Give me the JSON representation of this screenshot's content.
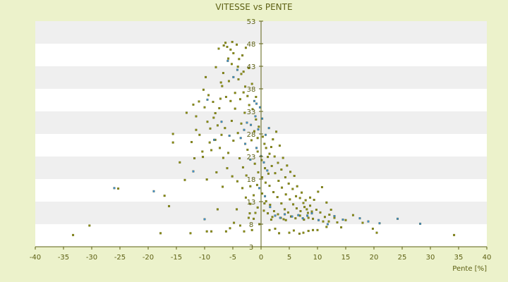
{
  "chart_data": {
    "type": "scatter",
    "title": "VITESSE vs PENTE",
    "xlabel": "Pente [%]",
    "ylabel": "",
    "xlim": [
      -40,
      40
    ],
    "ylim": [
      3,
      53
    ],
    "x_ticks": [
      -40,
      -35,
      -30,
      -25,
      -20,
      -15,
      -10,
      -5,
      0,
      5,
      10,
      15,
      20,
      25,
      30,
      35,
      40
    ],
    "y_ticks": [
      3,
      8,
      13,
      18,
      23,
      28,
      33,
      38,
      43,
      48,
      53
    ],
    "y_tick_labels": [
      "3",
      "8",
      "13",
      "18",
      "23",
      "28",
      "33",
      "38",
      "43",
      "48",
      "53"
    ],
    "grid": "horizontal bands",
    "colors": {
      "olive": "#8c8f10",
      "blue": "#3a8fd6",
      "band_light": "#ffffff",
      "band_dark": "#efefef",
      "axis": "#5d6013"
    },
    "series": [
      {
        "color": "#8c8f10",
        "points": [
          [
            -33.3,
            5.6
          ],
          [
            -30.4,
            7.7
          ],
          [
            -25.3,
            15.9
          ],
          [
            -17.8,
            6.0
          ],
          [
            -17.1,
            14.3
          ],
          [
            -16.3,
            12.0
          ],
          [
            -12.5,
            6.0
          ],
          [
            -11.8,
            22.6
          ],
          [
            -10.4,
            24.1
          ],
          [
            -9.6,
            6.4
          ],
          [
            -8.8,
            6.4
          ],
          [
            -7.7,
            11.3
          ],
          [
            -6.2,
            6.4
          ],
          [
            -5.5,
            7.1
          ],
          [
            -4.8,
            8.3
          ],
          [
            -4.3,
            11.3
          ],
          [
            -3.7,
            7.7
          ],
          [
            -3.0,
            6.4
          ],
          [
            -2.2,
            9.4
          ],
          [
            -1.6,
            6.7
          ],
          [
            -1.0,
            10.5
          ],
          [
            -0.3,
            8.0
          ],
          [
            0.5,
            11.0
          ],
          [
            1.5,
            6.7
          ],
          [
            1.8,
            9.0
          ],
          [
            2.5,
            7.0
          ],
          [
            3.2,
            6.0
          ],
          [
            4.0,
            9.1
          ],
          [
            5.0,
            6.1
          ],
          [
            5.8,
            6.6
          ],
          [
            6.8,
            5.9
          ],
          [
            7.5,
            6.1
          ],
          [
            8.4,
            6.5
          ],
          [
            9.2,
            6.7
          ],
          [
            10.0,
            6.7
          ],
          [
            11.6,
            7.4
          ],
          [
            12.0,
            8.6
          ],
          [
            14.2,
            7.3
          ],
          [
            16.3,
            10.0
          ],
          [
            19.8,
            7.0
          ],
          [
            20.5,
            6.1
          ],
          [
            34.2,
            5.6
          ],
          [
            -9.6,
            17.9
          ],
          [
            -6.8,
            16.3
          ],
          [
            -13.5,
            17.8
          ],
          [
            -14.4,
            21.7
          ],
          [
            -15.6,
            26.1
          ],
          [
            -15.6,
            28.0
          ],
          [
            -13.2,
            32.7
          ],
          [
            -11.5,
            31.9
          ],
          [
            -10.0,
            33.9
          ],
          [
            -9.8,
            40.6
          ],
          [
            -7.1,
            39.4
          ],
          [
            -8.0,
            42.8
          ],
          [
            -6.6,
            47.6
          ],
          [
            -6.0,
            47.3
          ],
          [
            -5.4,
            46.7
          ],
          [
            -4.9,
            45.9
          ],
          [
            -5.2,
            43.5
          ],
          [
            -3.9,
            44.6
          ],
          [
            -3.5,
            41.3
          ],
          [
            -2.8,
            38.5
          ],
          [
            -4.6,
            37.1
          ],
          [
            -6.2,
            36.2
          ],
          [
            -7.4,
            33.7
          ],
          [
            -8.4,
            31.6
          ],
          [
            -9.0,
            29.2
          ],
          [
            -8.1,
            26.7
          ],
          [
            -7.3,
            24.9
          ],
          [
            -6.7,
            22.7
          ],
          [
            -5.8,
            23.8
          ],
          [
            -4.9,
            26.5
          ],
          [
            -4.1,
            28.2
          ],
          [
            -3.5,
            30.3
          ],
          [
            -2.9,
            32.7
          ],
          [
            -2.1,
            34.4
          ],
          [
            -1.5,
            33.5
          ],
          [
            -0.9,
            31.2
          ],
          [
            -0.4,
            29.6
          ],
          [
            0.3,
            27.4
          ],
          [
            0.9,
            24.9
          ],
          [
            1.5,
            23.6
          ],
          [
            2.1,
            26.8
          ],
          [
            2.7,
            28.5
          ],
          [
            3.3,
            25.4
          ],
          [
            3.9,
            22.7
          ],
          [
            4.6,
            21.0
          ],
          [
            5.2,
            19.6
          ],
          [
            5.9,
            18.7
          ],
          [
            6.4,
            16.4
          ],
          [
            7.2,
            15.0
          ],
          [
            7.9,
            13.3
          ],
          [
            8.7,
            12.1
          ],
          [
            9.4,
            13.4
          ],
          [
            10.1,
            15.2
          ],
          [
            10.8,
            16.2
          ],
          [
            11.6,
            12.8
          ],
          [
            12.4,
            11.2
          ],
          [
            -1.1,
            21.4
          ],
          [
            -0.5,
            19.5
          ],
          [
            0.2,
            18.4
          ],
          [
            0.8,
            17.2
          ],
          [
            1.5,
            16.5
          ],
          [
            2.2,
            15.1
          ],
          [
            2.9,
            14.0
          ],
          [
            3.6,
            12.6
          ],
          [
            4.2,
            11.3
          ],
          [
            4.8,
            10.6
          ],
          [
            -1.9,
            16.4
          ],
          [
            -2.6,
            18.8
          ],
          [
            -3.2,
            20.6
          ],
          [
            -3.8,
            22.6
          ],
          [
            -2.4,
            24.5
          ],
          [
            -1.7,
            26.6
          ],
          [
            -1.2,
            28.6
          ],
          [
            -0.6,
            24.1
          ],
          [
            0.1,
            22.2
          ],
          [
            0.7,
            20.4
          ],
          [
            1.3,
            19.2
          ],
          [
            1.9,
            20.9
          ],
          [
            2.5,
            19.3
          ],
          [
            3.1,
            17.6
          ],
          [
            3.7,
            16.1
          ],
          [
            4.4,
            14.6
          ],
          [
            5.1,
            13.5
          ],
          [
            5.7,
            12.4
          ],
          [
            6.3,
            11.5
          ],
          [
            7.0,
            10.9
          ],
          [
            7.7,
            11.8
          ],
          [
            8.3,
            10.5
          ],
          [
            9.0,
            10.8
          ],
          [
            9.8,
            11.2
          ],
          [
            10.5,
            10.6
          ],
          [
            11.3,
            9.6
          ],
          [
            12.1,
            10.1
          ],
          [
            13.0,
            9.4
          ],
          [
            -5.4,
            35.3
          ],
          [
            -4.6,
            33.6
          ],
          [
            -3.7,
            35.7
          ],
          [
            -3.1,
            37.2
          ],
          [
            -2.4,
            36.4
          ],
          [
            -5.2,
            30.9
          ],
          [
            -6.4,
            29.3
          ],
          [
            -7.0,
            27.8
          ],
          [
            -7.7,
            29.9
          ],
          [
            -8.5,
            35.1
          ],
          [
            -9.3,
            36.6
          ],
          [
            -10.2,
            37.8
          ],
          [
            -11.0,
            35.2
          ],
          [
            -12.0,
            34.5
          ],
          [
            -3.1,
            41.8
          ],
          [
            -4.0,
            40.1
          ],
          [
            -5.7,
            39.7
          ],
          [
            -6.7,
            41.5
          ],
          [
            -5.8,
            44.7
          ],
          [
            -7.5,
            46.9
          ],
          [
            -4.3,
            47.8
          ],
          [
            -5.1,
            48.4
          ],
          [
            -6.3,
            48.2
          ],
          [
            -1.6,
            39.1
          ],
          [
            -2.2,
            42.6
          ],
          [
            -0.9,
            36.2
          ],
          [
            -10.9,
            27.8
          ],
          [
            -12.3,
            26.2
          ],
          [
            -8.8,
            24.4
          ],
          [
            -10.3,
            22.9
          ],
          [
            -7.9,
            19.5
          ],
          [
            -6.0,
            20.4
          ],
          [
            -5.1,
            18.6
          ],
          [
            -4.2,
            17.5
          ],
          [
            -3.3,
            16.0
          ],
          [
            -2.7,
            13.9
          ],
          [
            -1.9,
            12.5
          ],
          [
            -1.3,
            14.4
          ],
          [
            -0.7,
            16.7
          ],
          [
            0.2,
            14.8
          ],
          [
            0.9,
            13.1
          ],
          [
            1.6,
            12.3
          ],
          [
            2.3,
            10.9
          ],
          [
            3.0,
            10.2
          ],
          [
            3.5,
            9.4
          ],
          [
            4.4,
            8.9
          ],
          [
            5.3,
            9.7
          ],
          [
            6.1,
            9.3
          ],
          [
            6.9,
            9.9
          ],
          [
            7.6,
            9.0
          ],
          [
            8.4,
            9.4
          ],
          [
            9.2,
            9.2
          ],
          [
            11.0,
            8.6
          ],
          [
            13.5,
            8.4
          ],
          [
            15.0,
            8.9
          ],
          [
            18.0,
            8.3
          ],
          [
            -2.0,
            10.4
          ],
          [
            -1.3,
            9.2
          ],
          [
            -0.6,
            11.7
          ],
          [
            0.6,
            12.6
          ],
          [
            1.2,
            10.4
          ],
          [
            2.0,
            9.6
          ],
          [
            -11.5,
            28.9
          ],
          [
            -9.5,
            30.7
          ],
          [
            -8.1,
            32.6
          ],
          [
            -9.1,
            26.1
          ],
          [
            -7.2,
            35.8
          ],
          [
            -6.9,
            38.6
          ],
          [
            -4.1,
            42.9
          ],
          [
            -3.3,
            45.4
          ],
          [
            -2.7,
            47.1
          ],
          [
            -0.6,
            27.1
          ],
          [
            0.6,
            25.8
          ],
          [
            1.2,
            22.9
          ],
          [
            1.8,
            25.1
          ],
          [
            2.4,
            23.0
          ],
          [
            3.0,
            21.6
          ],
          [
            3.6,
            20.1
          ],
          [
            4.3,
            18.4
          ],
          [
            4.9,
            17.0
          ],
          [
            5.6,
            15.8
          ],
          [
            6.2,
            14.2
          ],
          [
            6.9,
            13.8
          ],
          [
            7.5,
            12.7
          ],
          [
            8.1,
            11.3
          ],
          [
            8.7,
            13.9
          ]
        ]
      },
      {
        "color": "#3a8fd6",
        "points": [
          [
            -26.0,
            16.0
          ],
          [
            -19.0,
            15.3
          ],
          [
            -12.0,
            19.7
          ],
          [
            -10.0,
            9.1
          ],
          [
            -9.5,
            35.6
          ],
          [
            -5.9,
            44.2
          ],
          [
            -4.9,
            40.6
          ],
          [
            -4.2,
            42.2
          ],
          [
            -3.0,
            28.9
          ],
          [
            -2.5,
            30.5
          ],
          [
            -1.8,
            30.0
          ],
          [
            -1.0,
            31.9
          ],
          [
            -0.5,
            29.0
          ],
          [
            0.2,
            31.4
          ],
          [
            0.8,
            27.8
          ],
          [
            1.4,
            29.3
          ],
          [
            -0.8,
            24.9
          ],
          [
            0.0,
            23.1
          ],
          [
            0.5,
            21.7
          ],
          [
            1.1,
            19.9
          ],
          [
            -0.3,
            16.0
          ],
          [
            0.7,
            14.2
          ],
          [
            1.6,
            11.8
          ],
          [
            2.5,
            9.9
          ],
          [
            3.4,
            9.4
          ],
          [
            4.2,
            10.2
          ],
          [
            5.5,
            9.7
          ],
          [
            6.6,
            10.0
          ],
          [
            7.4,
            9.3
          ],
          [
            8.2,
            9.9
          ],
          [
            9.0,
            10.4
          ],
          [
            10.2,
            8.9
          ],
          [
            11.8,
            8.0
          ],
          [
            13.0,
            9.8
          ],
          [
            14.5,
            9.0
          ],
          [
            17.5,
            9.3
          ],
          [
            19.0,
            8.6
          ],
          [
            21.0,
            8.2
          ],
          [
            24.2,
            9.2
          ],
          [
            28.2,
            8.1
          ],
          [
            -1.9,
            22.3
          ],
          [
            -2.8,
            25.8
          ],
          [
            -3.6,
            27.1
          ],
          [
            -1.2,
            35.3
          ],
          [
            -0.2,
            33.9
          ],
          [
            -0.8,
            34.7
          ],
          [
            -7.0,
            30.7
          ],
          [
            -8.3,
            26.7
          ],
          [
            -5.6,
            27.6
          ]
        ]
      }
    ]
  }
}
